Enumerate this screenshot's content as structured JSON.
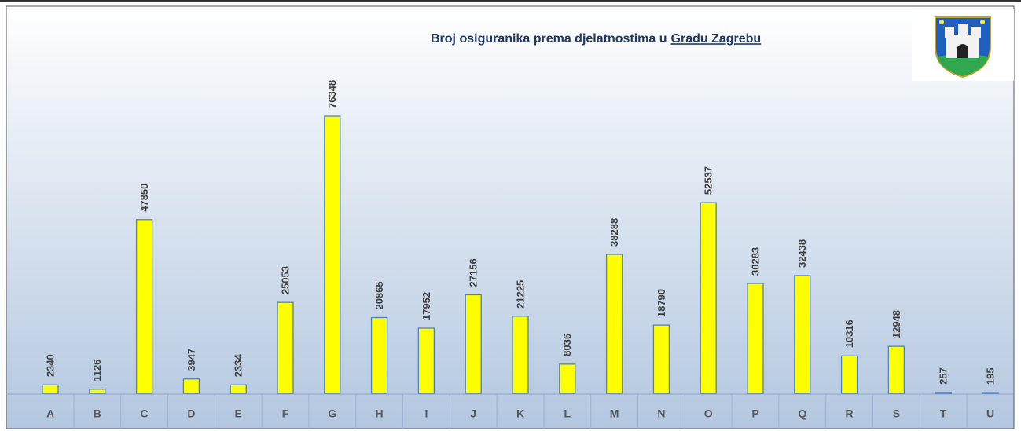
{
  "chart_data": {
    "type": "bar",
    "title": "Broj osiguranika prema djelatnostima u",
    "title_link": "Gradu Zagrebu",
    "categories": [
      "A",
      "B",
      "C",
      "D",
      "E",
      "F",
      "G",
      "H",
      "I",
      "J",
      "K",
      "L",
      "M",
      "N",
      "O",
      "P",
      "Q",
      "R",
      "S",
      "T",
      "U"
    ],
    "values": [
      2340,
      1126,
      47850,
      3947,
      2334,
      25053,
      76348,
      20865,
      17952,
      27156,
      21225,
      8036,
      38288,
      18790,
      52537,
      30283,
      32438,
      10316,
      12948,
      257,
      195
    ],
    "color": "#ffff00"
  }
}
